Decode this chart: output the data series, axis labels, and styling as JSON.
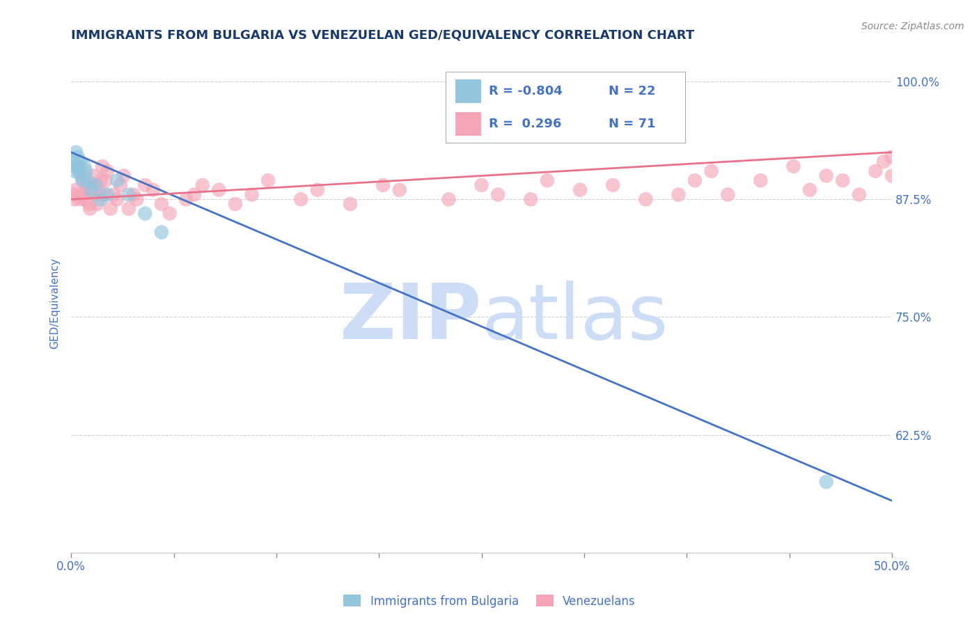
{
  "title": "IMMIGRANTS FROM BULGARIA VS VENEZUELAN GED/EQUIVALENCY CORRELATION CHART",
  "source": "Source: ZipAtlas.com",
  "ylabel": "GED/Equivalency",
  "x_min": 0.0,
  "x_max": 50.0,
  "y_min": 50.0,
  "y_max": 103.0,
  "yticks": [
    62.5,
    75.0,
    87.5,
    100.0
  ],
  "ytick_labels": [
    "62.5%",
    "75.0%",
    "87.5%",
    "100.0%"
  ],
  "xticks": [
    0.0,
    6.25,
    12.5,
    18.75,
    25.0,
    31.25,
    37.5,
    43.75,
    50.0
  ],
  "xtick_labels_show": [
    "0.0%",
    "",
    "",
    "",
    "",
    "",
    "",
    "",
    "50.0%"
  ],
  "legend_r_blue": "-0.804",
  "legend_n_blue": "22",
  "legend_r_pink": "0.296",
  "legend_n_pink": "71",
  "legend_label_blue": "Immigrants from Bulgaria",
  "legend_label_pink": "Venezuelans",
  "blue_color": "#92c5de",
  "pink_color": "#f4a6b8",
  "blue_line_color": "#4472c4",
  "pink_line_color": "#e8728a",
  "watermark_color": "#ccddf5",
  "blue_scatter_x": [
    0.15,
    0.2,
    0.25,
    0.3,
    0.35,
    0.4,
    0.5,
    0.55,
    0.6,
    0.7,
    0.8,
    0.9,
    1.0,
    1.2,
    1.5,
    1.8,
    2.2,
    2.8,
    3.5,
    4.5,
    5.5,
    46.0
  ],
  "blue_scatter_y": [
    91.5,
    90.5,
    91.0,
    92.5,
    91.0,
    92.0,
    90.5,
    91.5,
    90.0,
    89.5,
    91.0,
    90.5,
    89.5,
    88.5,
    89.0,
    87.5,
    88.0,
    89.5,
    88.0,
    86.0,
    84.0,
    57.5
  ],
  "pink_scatter_x": [
    0.1,
    0.2,
    0.3,
    0.4,
    0.5,
    0.55,
    0.6,
    0.7,
    0.8,
    0.85,
    0.9,
    1.0,
    1.1,
    1.15,
    1.2,
    1.3,
    1.4,
    1.5,
    1.6,
    1.7,
    1.8,
    1.9,
    2.0,
    2.1,
    2.2,
    2.4,
    2.6,
    2.8,
    3.0,
    3.2,
    3.5,
    3.8,
    4.0,
    4.5,
    5.0,
    5.5,
    6.0,
    7.0,
    7.5,
    8.0,
    9.0,
    10.0,
    11.0,
    12.0,
    14.0,
    15.0,
    17.0,
    19.0,
    20.0,
    23.0,
    25.0,
    26.0,
    28.0,
    29.0,
    31.0,
    33.0,
    35.0,
    37.0,
    38.0,
    39.0,
    40.0,
    42.0,
    44.0,
    45.0,
    46.0,
    47.0,
    48.0,
    49.0,
    49.5,
    50.0,
    50.0
  ],
  "pink_scatter_y": [
    88.0,
    87.5,
    88.5,
    91.0,
    90.5,
    87.5,
    88.0,
    89.5,
    90.0,
    87.5,
    88.5,
    89.0,
    87.0,
    86.5,
    88.5,
    89.0,
    90.0,
    88.0,
    87.0,
    88.5,
    89.5,
    91.0,
    88.0,
    89.5,
    90.5,
    86.5,
    88.0,
    87.5,
    89.0,
    90.0,
    86.5,
    88.0,
    87.5,
    89.0,
    88.5,
    87.0,
    86.0,
    87.5,
    88.0,
    89.0,
    88.5,
    87.0,
    88.0,
    89.5,
    87.5,
    88.5,
    87.0,
    89.0,
    88.5,
    87.5,
    89.0,
    88.0,
    87.5,
    89.5,
    88.5,
    89.0,
    87.5,
    88.0,
    89.5,
    90.5,
    88.0,
    89.5,
    91.0,
    88.5,
    90.0,
    89.5,
    88.0,
    90.5,
    91.5,
    90.0,
    92.0
  ],
  "blue_line_x0": 0.0,
  "blue_line_x1": 50.0,
  "blue_line_y0": 92.5,
  "blue_line_y1": 55.5,
  "pink_line_x0": 0.0,
  "pink_line_x1": 50.0,
  "pink_line_y0": 87.5,
  "pink_line_y1": 92.5,
  "title_fontsize": 13,
  "text_color": "#1a3a6b",
  "tick_color": "#4472c4",
  "grid_color": "#d0d0d0",
  "background_color": "#ffffff"
}
